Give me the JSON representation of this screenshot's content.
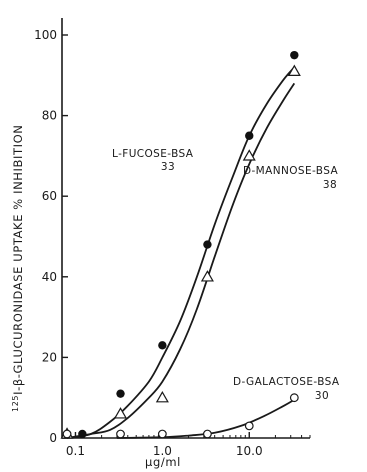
{
  "chart_data": {
    "type": "scatter",
    "xlabel": "µg/ml",
    "ylabel_sup": "125",
    "ylabel": "I-β-GLUCURONIDASE UPTAKE % INHIBITION",
    "x_scale": "log",
    "xlim": [
      0.07,
      50
    ],
    "ylim": [
      0,
      100
    ],
    "x_ticks": [
      {
        "value": 0.1,
        "label": "0.1"
      },
      {
        "value": 1.0,
        "label": "1.0"
      },
      {
        "value": 10.0,
        "label": "10.0"
      }
    ],
    "y_ticks": [
      {
        "value": 0,
        "label": "0"
      },
      {
        "value": 20,
        "label": "20"
      },
      {
        "value": 40,
        "label": "40"
      },
      {
        "value": 60,
        "label": "60"
      },
      {
        "value": 80,
        "label": "80"
      },
      {
        "value": 100,
        "label": "100"
      }
    ],
    "grid": false,
    "series": [
      {
        "name": "L-FUCOSE-BSA",
        "sub": "33",
        "marker": "filled-circle",
        "x": [
          0.08,
          0.12,
          0.33,
          1.0,
          3.3,
          10.0,
          33.0
        ],
        "y": [
          1,
          1,
          11,
          23,
          48,
          75,
          95
        ],
        "curve_x": [
          0.08,
          0.15,
          0.25,
          0.4,
          0.7,
          1.0,
          1.6,
          2.5,
          4.0,
          6.5,
          10.0,
          16.0,
          25.0,
          33.0
        ],
        "curve_y": [
          0,
          1,
          4,
          8,
          14,
          20,
          29,
          40,
          53,
          65,
          75,
          83,
          89,
          92
        ]
      },
      {
        "name": "D-MANNOSE-BSA",
        "sub": "38",
        "marker": "open-triangle",
        "x": [
          0.08,
          0.33,
          1.0,
          3.3,
          10.0,
          33.0
        ],
        "y": [
          1,
          6,
          10,
          40,
          70,
          91
        ],
        "curve_x": [
          0.08,
          0.15,
          0.25,
          0.4,
          0.7,
          1.0,
          1.6,
          2.5,
          4.0,
          6.5,
          10.0,
          16.0,
          25.0,
          33.0
        ],
        "curve_y": [
          0,
          1,
          2,
          5,
          10,
          14,
          22,
          32,
          45,
          58,
          68,
          77,
          84,
          88
        ]
      },
      {
        "name": "D-GALACTOSE-BSA",
        "sub": "30",
        "marker": "open-circle",
        "x": [
          0.08,
          0.33,
          1.0,
          3.3,
          10.0,
          33.0
        ],
        "y": [
          1,
          1,
          1,
          1,
          3,
          10
        ],
        "curve_x": [
          0.3,
          1.0,
          2.0,
          4.0,
          8.0,
          15.0,
          25.0,
          33.0
        ],
        "curve_y": [
          0,
          0.2,
          0.6,
          1.3,
          3,
          5.5,
          8,
          9.5
        ]
      }
    ]
  }
}
